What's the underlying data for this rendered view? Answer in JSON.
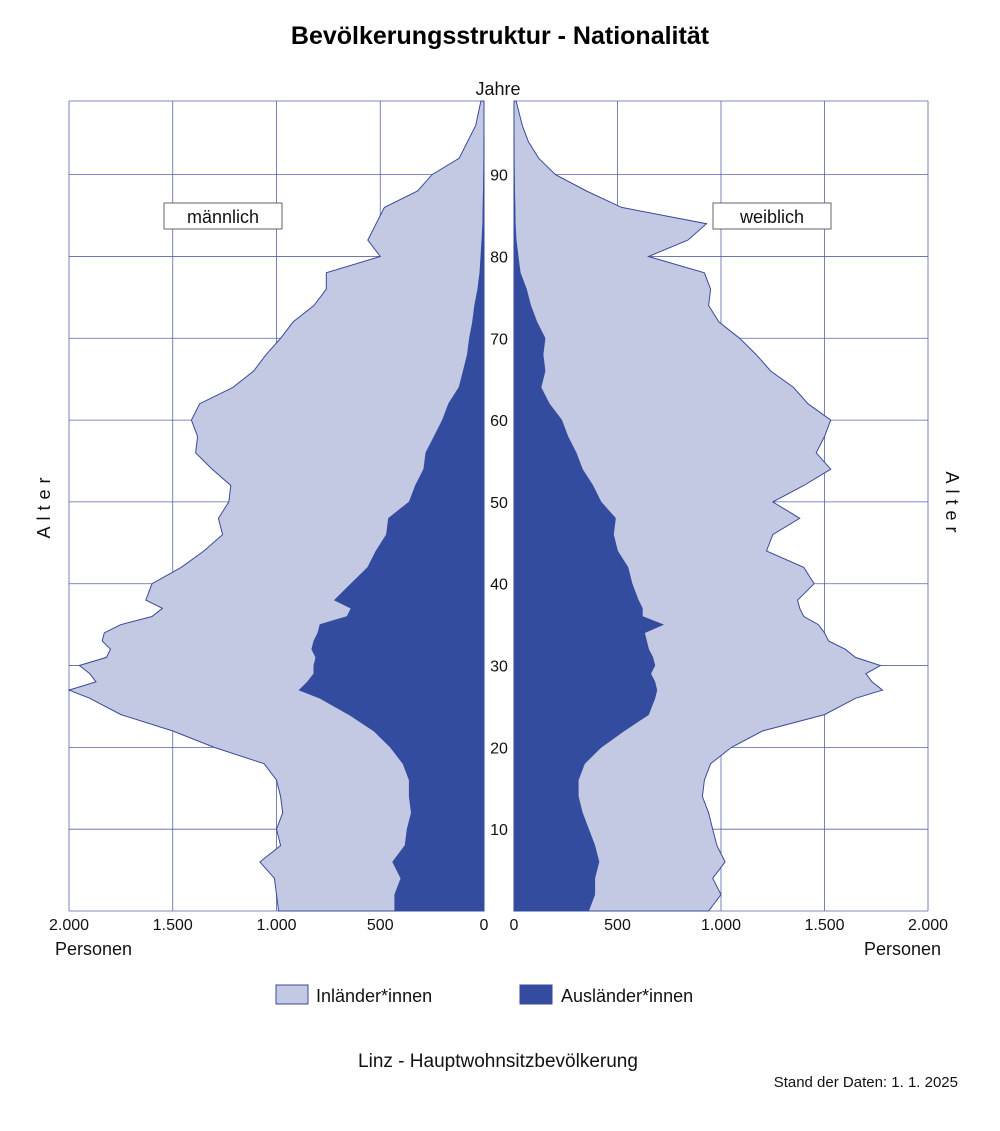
{
  "title": "Bevölkerungsstruktur - Nationalität",
  "center_label": "Jahre",
  "y_axis_label": "Alter",
  "x_axis_label": "Personen",
  "left_box": "männlich",
  "right_box": "weiblich",
  "footer_title": "Linz - Hauptwohnsitzbevölkerung",
  "footer_date": "Stand der Daten: 1. 1. 2025",
  "legend": [
    {
      "label": "Inländer*innen",
      "color": "#c3c9e3"
    },
    {
      "label": "Ausländer*innen",
      "color": "#344ca0"
    }
  ],
  "colors": {
    "grid": "#5763a8",
    "inland_fill": "#c3c9e3",
    "outline": "#3b4a99",
    "foreign_fill": "#344ca0"
  },
  "chart_data": {
    "type": "area",
    "orientation": "population-pyramid",
    "x_max": 2000,
    "x_ticks_left": [
      "2.000",
      "1.500",
      "1.000",
      "500",
      "0"
    ],
    "x_ticks_right": [
      "0",
      "500",
      "1.000",
      "1.500",
      "2.000"
    ],
    "y_ticks": [
      "10",
      "20",
      "30",
      "40",
      "50",
      "60",
      "70",
      "80",
      "90"
    ],
    "y_range": [
      0,
      99
    ],
    "age_knots": [
      0,
      2,
      4,
      6,
      8,
      10,
      12,
      14,
      16,
      18,
      20,
      22,
      24,
      26,
      27,
      28,
      29,
      30,
      31,
      32,
      33,
      34,
      35,
      36,
      37,
      38,
      40,
      42,
      44,
      46,
      48,
      50,
      52,
      54,
      56,
      58,
      60,
      62,
      64,
      66,
      68,
      70,
      72,
      74,
      76,
      78,
      80,
      82,
      84,
      86,
      88,
      90,
      92,
      94,
      96,
      99
    ],
    "series": [
      {
        "name": "männlich",
        "total": [
          990,
          1000,
          1010,
          1080,
          980,
          1000,
          970,
          980,
          1000,
          1060,
          1300,
          1500,
          1750,
          1900,
          2000,
          1870,
          1900,
          1950,
          1820,
          1800,
          1840,
          1830,
          1750,
          1600,
          1550,
          1630,
          1600,
          1460,
          1350,
          1260,
          1280,
          1230,
          1220,
          1310,
          1390,
          1380,
          1410,
          1370,
          1210,
          1110,
          1050,
          980,
          920,
          820,
          760,
          760,
          500,
          560,
          520,
          480,
          320,
          250,
          120,
          80,
          40,
          15
        ],
        "foreign": [
          430,
          430,
          400,
          440,
          380,
          370,
          350,
          360,
          360,
          390,
          450,
          530,
          650,
          790,
          890,
          850,
          820,
          820,
          810,
          830,
          820,
          800,
          790,
          660,
          640,
          720,
          640,
          560,
          520,
          470,
          460,
          360,
          330,
          290,
          280,
          240,
          200,
          170,
          120,
          100,
          80,
          70,
          55,
          45,
          30,
          20,
          15,
          10,
          6,
          5,
          3,
          2,
          1,
          1,
          0,
          0
        ]
      },
      {
        "name": "weiblich",
        "total": [
          940,
          1000,
          960,
          1020,
          980,
          960,
          940,
          910,
          920,
          950,
          1050,
          1200,
          1500,
          1650,
          1780,
          1730,
          1700,
          1770,
          1650,
          1600,
          1520,
          1500,
          1470,
          1400,
          1380,
          1370,
          1450,
          1400,
          1220,
          1250,
          1380,
          1250,
          1400,
          1530,
          1460,
          1500,
          1530,
          1420,
          1350,
          1240,
          1170,
          1090,
          990,
          940,
          950,
          920,
          650,
          840,
          930,
          520,
          350,
          200,
          120,
          70,
          40,
          10
        ],
        "foreign": [
          360,
          390,
          390,
          410,
          390,
          360,
          330,
          310,
          310,
          340,
          420,
          530,
          650,
          680,
          690,
          680,
          660,
          680,
          670,
          650,
          640,
          630,
          720,
          620,
          620,
          600,
          570,
          550,
          500,
          480,
          490,
          420,
          380,
          330,
          300,
          260,
          230,
          170,
          130,
          150,
          140,
          150,
          110,
          80,
          60,
          30,
          20,
          10,
          6,
          5,
          3,
          2,
          1,
          1,
          0,
          0
        ]
      }
    ]
  }
}
